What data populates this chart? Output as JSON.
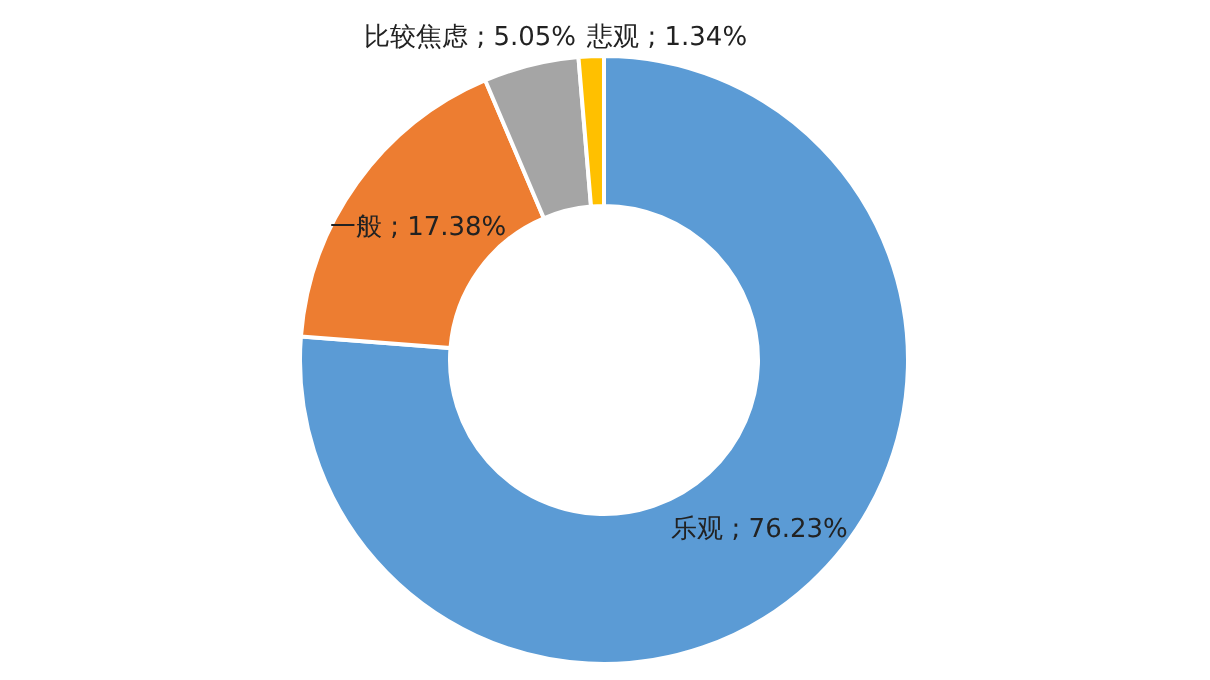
{
  "chart_data": {
    "type": "donut",
    "categories": [
      "乐观",
      "一般",
      "比较焦虑",
      "悲观"
    ],
    "values": [
      76.23,
      17.38,
      5.05,
      1.34
    ],
    "colors": [
      "#5b9bd5",
      "#ed7d31",
      "#a5a5a5",
      "#ffc000"
    ],
    "value_labels": [
      "; 76.23%",
      "; 17.38%",
      "; 5.05%",
      "; 1.34%"
    ],
    "legend": false
  }
}
